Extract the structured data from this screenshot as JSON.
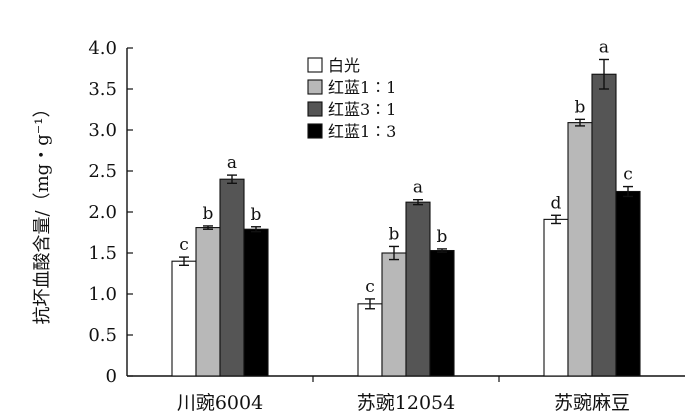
{
  "chart_data": {
    "type": "bar",
    "ylabel": "抗坏血酸含量/（mg・g⁻¹）",
    "ylim": [
      0,
      4.0
    ],
    "yticks": [
      "0",
      "0.5",
      "1.0",
      "1.5",
      "2.0",
      "2.5",
      "3.0",
      "3.5",
      "4.0"
    ],
    "categories": [
      "川豌6004",
      "苏豌12054",
      "苏豌麻豆"
    ],
    "legend_position": "top-center",
    "grid": false,
    "series": [
      {
        "name": "白光",
        "color": "#ffffff",
        "values": [
          1.4,
          0.88,
          1.91
        ],
        "errors": [
          0.05,
          0.06,
          0.05
        ],
        "labels": [
          "c",
          "c",
          "d"
        ]
      },
      {
        "name": "红蓝1∶1",
        "color": "#b8b8b8",
        "values": [
          1.81,
          1.5,
          3.09
        ],
        "errors": [
          0.02,
          0.08,
          0.04
        ],
        "labels": [
          "b",
          "b",
          "b"
        ]
      },
      {
        "name": "红蓝3∶1",
        "color": "#555555",
        "values": [
          2.4,
          2.12,
          3.68
        ],
        "errors": [
          0.05,
          0.03,
          0.18
        ],
        "labels": [
          "a",
          "a",
          "a"
        ]
      },
      {
        "name": "红蓝1∶3",
        "color": "#000000",
        "values": [
          1.79,
          1.53,
          2.25
        ],
        "errors": [
          0.03,
          0.02,
          0.06
        ],
        "labels": [
          "b",
          "b",
          "c"
        ]
      }
    ]
  }
}
